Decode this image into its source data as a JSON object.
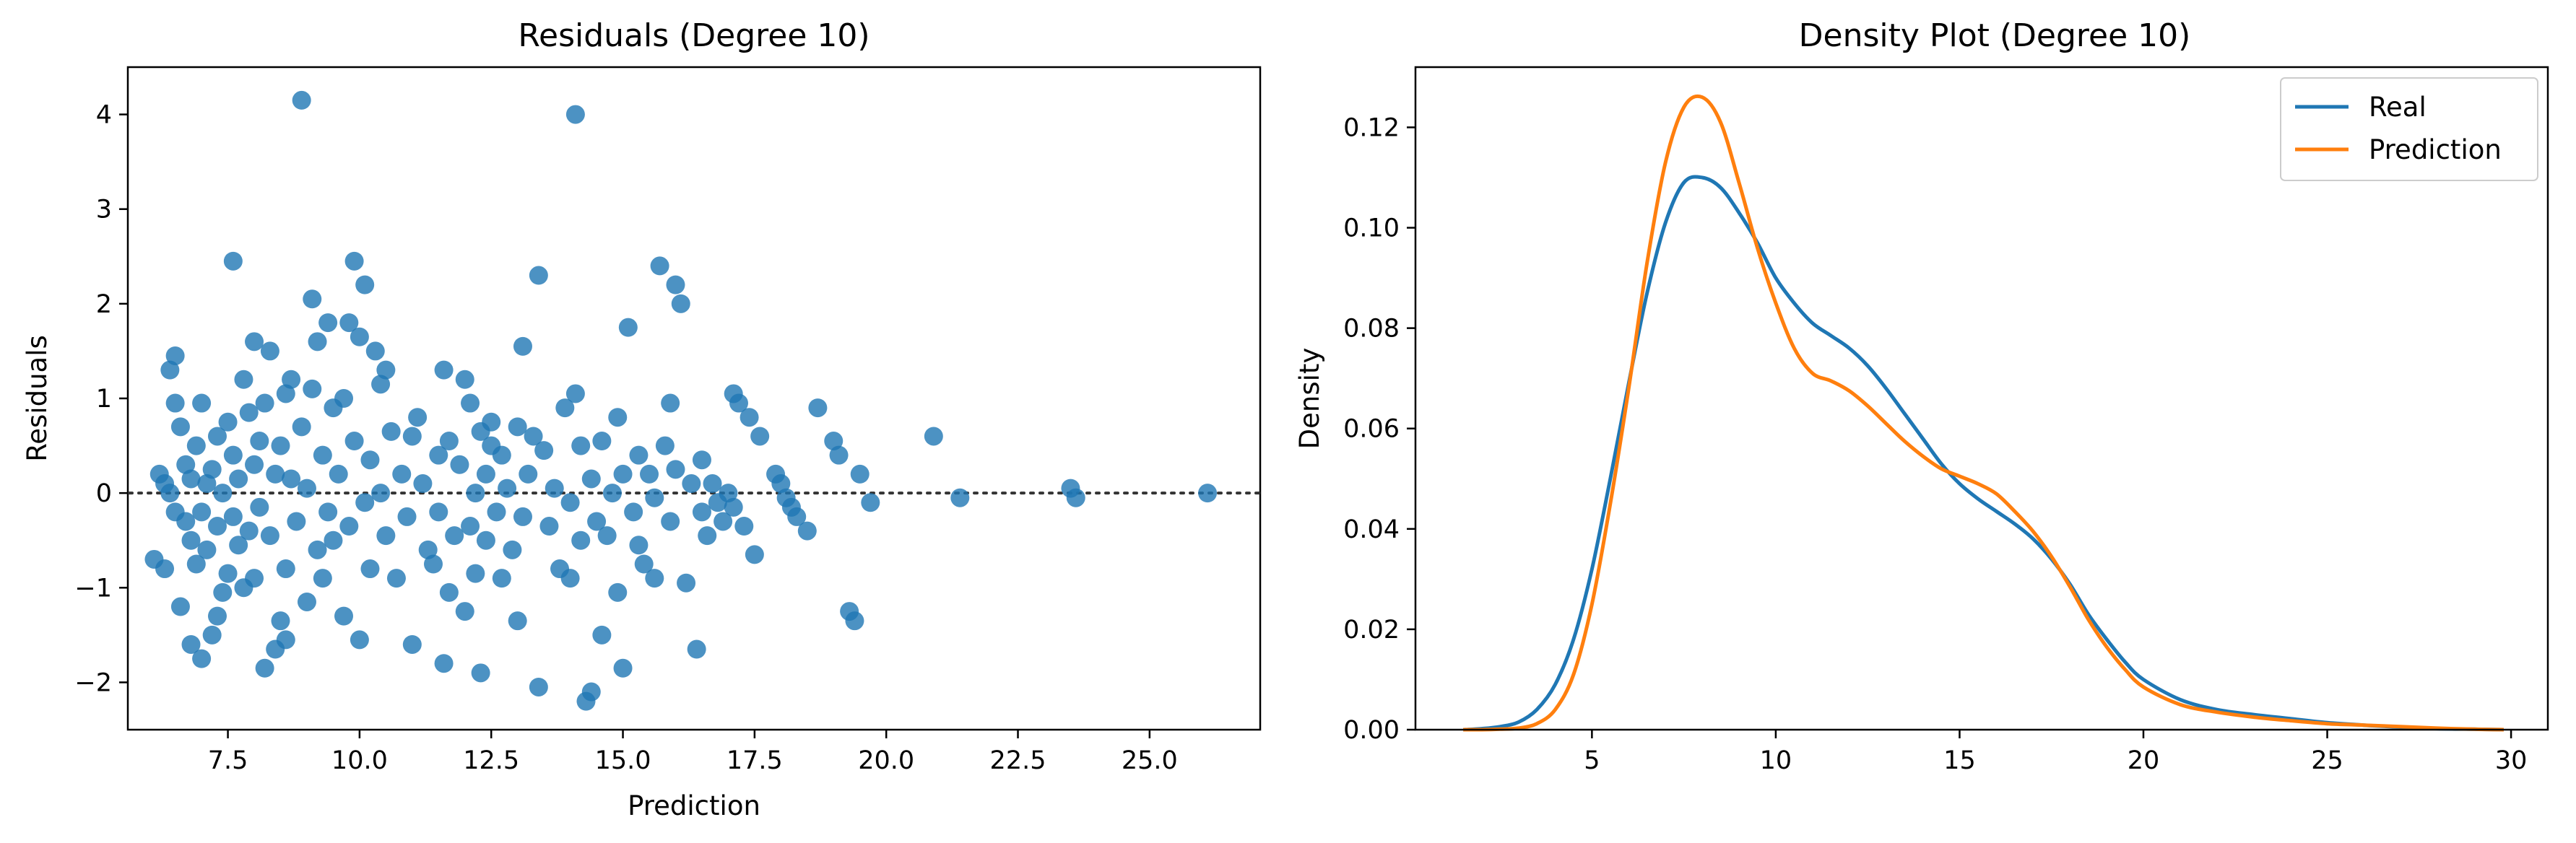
{
  "chart_data": [
    {
      "type": "scatter",
      "title": "Residuals (Degree 10)",
      "xlabel": "Prediction",
      "ylabel": "Residuals",
      "xlim": [
        5.6,
        27.1
      ],
      "ylim": [
        -2.5,
        4.5
      ],
      "xticks": [
        "7.5",
        "10.0",
        "12.5",
        "15.0",
        "17.5",
        "20.0",
        "22.5",
        "25.0"
      ],
      "yticks": [
        "−2",
        "−1",
        "0",
        "1",
        "2",
        "3",
        "4"
      ],
      "xtick_values": [
        7.5,
        10.0,
        12.5,
        15.0,
        17.5,
        20.0,
        22.5,
        25.0
      ],
      "ytick_values": [
        -2,
        -1,
        0,
        1,
        2,
        3,
        4
      ],
      "reference_line": 0,
      "grid": false,
      "color": "#1f77b4",
      "points": [
        [
          6.1,
          -0.7
        ],
        [
          6.2,
          0.2
        ],
        [
          6.3,
          -0.8
        ],
        [
          6.3,
          0.1
        ],
        [
          6.4,
          1.3
        ],
        [
          6.4,
          0.0
        ],
        [
          6.5,
          0.95
        ],
        [
          6.5,
          1.45
        ],
        [
          6.5,
          -0.2
        ],
        [
          6.6,
          -1.2
        ],
        [
          6.6,
          0.7
        ],
        [
          6.7,
          -0.3
        ],
        [
          6.7,
          0.3
        ],
        [
          6.8,
          -0.5
        ],
        [
          6.8,
          -1.6
        ],
        [
          6.8,
          0.15
        ],
        [
          6.9,
          -0.75
        ],
        [
          6.9,
          0.5
        ],
        [
          7.0,
          0.95
        ],
        [
          7.0,
          -0.2
        ],
        [
          7.0,
          -1.75
        ],
        [
          7.1,
          0.1
        ],
        [
          7.1,
          -0.6
        ],
        [
          7.2,
          -1.5
        ],
        [
          7.2,
          0.25
        ],
        [
          7.3,
          -1.3
        ],
        [
          7.3,
          -0.35
        ],
        [
          7.3,
          0.6
        ],
        [
          7.4,
          -1.05
        ],
        [
          7.4,
          0.0
        ],
        [
          7.5,
          0.75
        ],
        [
          7.5,
          -0.85
        ],
        [
          7.6,
          2.45
        ],
        [
          7.6,
          0.4
        ],
        [
          7.6,
          -0.25
        ],
        [
          7.7,
          -0.55
        ],
        [
          7.7,
          0.15
        ],
        [
          7.8,
          -1.0
        ],
        [
          7.8,
          1.2
        ],
        [
          7.9,
          0.85
        ],
        [
          7.9,
          -0.4
        ],
        [
          8.0,
          1.6
        ],
        [
          8.0,
          0.3
        ],
        [
          8.0,
          -0.9
        ],
        [
          8.1,
          -0.15
        ],
        [
          8.1,
          0.55
        ],
        [
          8.2,
          -1.85
        ],
        [
          8.2,
          0.95
        ],
        [
          8.3,
          1.5
        ],
        [
          8.3,
          -0.45
        ],
        [
          8.4,
          0.2
        ],
        [
          8.4,
          -1.65
        ],
        [
          8.5,
          -1.35
        ],
        [
          8.5,
          0.5
        ],
        [
          8.6,
          -0.8
        ],
        [
          8.6,
          1.05
        ],
        [
          8.6,
          -1.55
        ],
        [
          8.7,
          0.15
        ],
        [
          8.7,
          1.2
        ],
        [
          8.8,
          -0.3
        ],
        [
          8.9,
          4.15
        ],
        [
          8.9,
          0.7
        ],
        [
          9.0,
          -1.15
        ],
        [
          9.0,
          0.05
        ],
        [
          9.1,
          2.05
        ],
        [
          9.1,
          1.1
        ],
        [
          9.2,
          -0.6
        ],
        [
          9.2,
          1.6
        ],
        [
          9.3,
          0.4
        ],
        [
          9.3,
          -0.9
        ],
        [
          9.4,
          1.8
        ],
        [
          9.4,
          -0.2
        ],
        [
          9.5,
          0.9
        ],
        [
          9.5,
          -0.5
        ],
        [
          9.6,
          0.2
        ],
        [
          9.7,
          1.0
        ],
        [
          9.7,
          -1.3
        ],
        [
          9.8,
          -0.35
        ],
        [
          9.8,
          1.8
        ],
        [
          9.9,
          2.45
        ],
        [
          9.9,
          0.55
        ],
        [
          10.0,
          -1.55
        ],
        [
          10.0,
          1.65
        ],
        [
          10.1,
          2.2
        ],
        [
          10.1,
          -0.1
        ],
        [
          10.2,
          0.35
        ],
        [
          10.2,
          -0.8
        ],
        [
          10.3,
          1.5
        ],
        [
          10.4,
          0.0
        ],
        [
          10.4,
          1.15
        ],
        [
          10.5,
          -0.45
        ],
        [
          10.5,
          1.3
        ],
        [
          10.6,
          0.65
        ],
        [
          10.7,
          -0.9
        ],
        [
          10.8,
          0.2
        ],
        [
          10.9,
          -0.25
        ],
        [
          11.0,
          0.6
        ],
        [
          11.0,
          -1.6
        ],
        [
          11.1,
          0.8
        ],
        [
          11.2,
          0.1
        ],
        [
          11.3,
          -0.6
        ],
        [
          11.4,
          -0.75
        ],
        [
          11.5,
          0.4
        ],
        [
          11.5,
          -0.2
        ],
        [
          11.6,
          1.3
        ],
        [
          11.6,
          -1.8
        ],
        [
          11.7,
          0.55
        ],
        [
          11.7,
          -1.05
        ],
        [
          11.8,
          -0.45
        ],
        [
          11.9,
          0.3
        ],
        [
          12.0,
          1.2
        ],
        [
          12.0,
          -1.25
        ],
        [
          12.1,
          -0.35
        ],
        [
          12.1,
          0.95
        ],
        [
          12.2,
          0.0
        ],
        [
          12.2,
          -0.85
        ],
        [
          12.3,
          0.65
        ],
        [
          12.3,
          -1.9
        ],
        [
          12.4,
          0.2
        ],
        [
          12.4,
          -0.5
        ],
        [
          12.5,
          0.5
        ],
        [
          12.5,
          0.75
        ],
        [
          12.6,
          -0.2
        ],
        [
          12.7,
          -0.9
        ],
        [
          12.7,
          0.4
        ],
        [
          12.8,
          0.05
        ],
        [
          12.9,
          -0.6
        ],
        [
          13.0,
          0.7
        ],
        [
          13.0,
          -1.35
        ],
        [
          13.1,
          -0.25
        ],
        [
          13.1,
          1.55
        ],
        [
          13.2,
          0.2
        ],
        [
          13.3,
          0.6
        ],
        [
          13.4,
          2.3
        ],
        [
          13.4,
          -2.05
        ],
        [
          13.5,
          0.45
        ],
        [
          13.6,
          -0.35
        ],
        [
          13.7,
          0.05
        ],
        [
          13.8,
          -0.8
        ],
        [
          13.9,
          0.9
        ],
        [
          14.0,
          -0.1
        ],
        [
          14.0,
          -0.9
        ],
        [
          14.1,
          4.0
        ],
        [
          14.1,
          1.05
        ],
        [
          14.2,
          0.5
        ],
        [
          14.2,
          -0.5
        ],
        [
          14.3,
          -2.2
        ],
        [
          14.4,
          -2.1
        ],
        [
          14.4,
          0.15
        ],
        [
          14.5,
          -0.3
        ],
        [
          14.6,
          0.55
        ],
        [
          14.6,
          -1.5
        ],
        [
          14.7,
          -0.45
        ],
        [
          14.8,
          0.0
        ],
        [
          14.9,
          0.8
        ],
        [
          14.9,
          -1.05
        ],
        [
          15.0,
          0.2
        ],
        [
          15.0,
          -1.85
        ],
        [
          15.1,
          1.75
        ],
        [
          15.2,
          -0.2
        ],
        [
          15.3,
          0.4
        ],
        [
          15.3,
          -0.55
        ],
        [
          15.4,
          -0.75
        ],
        [
          15.5,
          0.2
        ],
        [
          15.6,
          -0.9
        ],
        [
          15.6,
          -0.05
        ],
        [
          15.7,
          2.4
        ],
        [
          15.8,
          0.5
        ],
        [
          15.9,
          0.95
        ],
        [
          15.9,
          -0.3
        ],
        [
          16.0,
          2.2
        ],
        [
          16.0,
          0.25
        ],
        [
          16.1,
          2.0
        ],
        [
          16.2,
          -0.95
        ],
        [
          16.3,
          0.1
        ],
        [
          16.4,
          -1.65
        ],
        [
          16.5,
          0.35
        ],
        [
          16.5,
          -0.2
        ],
        [
          16.6,
          -0.45
        ],
        [
          16.7,
          0.1
        ],
        [
          16.8,
          -0.1
        ],
        [
          16.9,
          -0.3
        ],
        [
          17.0,
          0.0
        ],
        [
          17.1,
          1.05
        ],
        [
          17.1,
          -0.15
        ],
        [
          17.2,
          0.95
        ],
        [
          17.3,
          -0.35
        ],
        [
          17.4,
          0.8
        ],
        [
          17.5,
          -0.65
        ],
        [
          17.6,
          0.6
        ],
        [
          17.9,
          0.2
        ],
        [
          18.0,
          0.1
        ],
        [
          18.1,
          -0.05
        ],
        [
          18.2,
          -0.15
        ],
        [
          18.3,
          -0.25
        ],
        [
          18.5,
          -0.4
        ],
        [
          18.7,
          0.9
        ],
        [
          19.0,
          0.55
        ],
        [
          19.1,
          0.4
        ],
        [
          19.3,
          -1.25
        ],
        [
          19.4,
          -1.35
        ],
        [
          19.5,
          0.2
        ],
        [
          19.7,
          -0.1
        ],
        [
          20.9,
          0.6
        ],
        [
          21.4,
          -0.05
        ],
        [
          23.5,
          0.05
        ],
        [
          23.6,
          -0.05
        ],
        [
          26.1,
          0.0
        ]
      ]
    },
    {
      "type": "line",
      "title": "Density Plot (Degree 10)",
      "xlabel": "",
      "ylabel": "Density",
      "xlim": [
        0.2,
        31.0
      ],
      "ylim": [
        0.0,
        0.132
      ],
      "xticks": [
        "5",
        "10",
        "15",
        "20",
        "25",
        "30"
      ],
      "yticks": [
        "0.00",
        "0.02",
        "0.04",
        "0.06",
        "0.08",
        "0.10",
        "0.12"
      ],
      "xtick_values": [
        5,
        10,
        15,
        20,
        25,
        30
      ],
      "ytick_values": [
        0.0,
        0.02,
        0.04,
        0.06,
        0.08,
        0.1,
        0.12
      ],
      "legend_position": "top-right",
      "grid": false,
      "x": [
        1.5,
        2.0,
        2.5,
        3.0,
        3.5,
        4.0,
        4.5,
        5.0,
        5.5,
        6.0,
        6.5,
        7.0,
        7.5,
        8.0,
        8.5,
        9.0,
        9.5,
        10.0,
        10.5,
        11.0,
        11.5,
        12.0,
        12.5,
        13.0,
        13.5,
        14.0,
        14.5,
        15.0,
        15.5,
        16.0,
        16.5,
        17.0,
        17.5,
        18.0,
        18.5,
        19.0,
        19.5,
        20.0,
        21.0,
        22.0,
        23.0,
        24.0,
        25.0,
        26.0,
        27.0,
        28.0,
        29.0,
        29.8
      ],
      "series": [
        {
          "name": "Real",
          "color": "#1f77b4",
          "values": [
            0.0,
            0.0002,
            0.0006,
            0.0015,
            0.004,
            0.009,
            0.018,
            0.032,
            0.05,
            0.069,
            0.087,
            0.101,
            0.109,
            0.11,
            0.108,
            0.103,
            0.097,
            0.09,
            0.085,
            0.081,
            0.0785,
            0.076,
            0.0725,
            0.068,
            0.063,
            0.058,
            0.053,
            0.049,
            0.046,
            0.0435,
            0.041,
            0.038,
            0.034,
            0.029,
            0.023,
            0.018,
            0.0135,
            0.01,
            0.006,
            0.004,
            0.003,
            0.0022,
            0.0014,
            0.0009,
            0.0005,
            0.0002,
            0.0001,
            0.0
          ]
        },
        {
          "name": "Prediction",
          "color": "#ff7f0e",
          "values": [
            0.0,
            0.0,
            0.0001,
            0.0003,
            0.0012,
            0.004,
            0.011,
            0.025,
            0.045,
            0.068,
            0.093,
            0.113,
            0.124,
            0.126,
            0.121,
            0.109,
            0.096,
            0.085,
            0.076,
            0.071,
            0.0695,
            0.0675,
            0.0645,
            0.061,
            0.0575,
            0.0545,
            0.052,
            0.0505,
            0.049,
            0.047,
            0.0435,
            0.0395,
            0.0345,
            0.0285,
            0.022,
            0.0165,
            0.012,
            0.0085,
            0.005,
            0.0035,
            0.0025,
            0.0018,
            0.0012,
            0.0009,
            0.0006,
            0.0003,
            0.0001,
            0.0
          ]
        }
      ]
    }
  ]
}
